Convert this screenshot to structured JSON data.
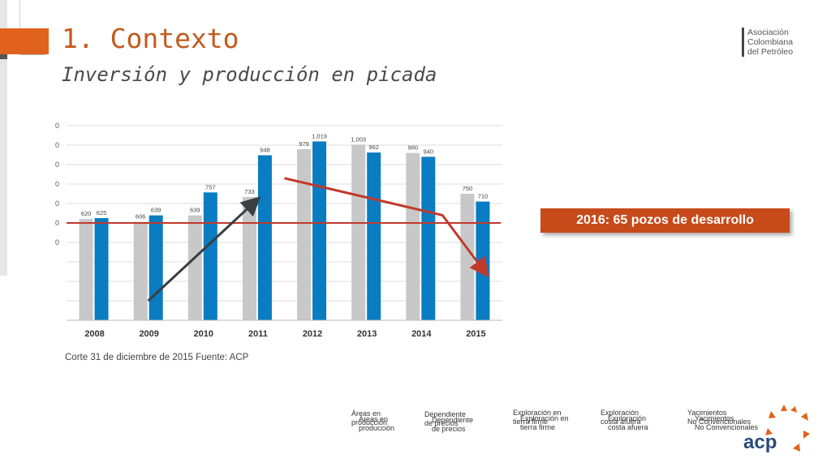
{
  "header": {
    "title": "1. Contexto",
    "subtitle": "Inversión y producción en picada"
  },
  "brand": {
    "top_logo_lines": [
      "Asociación",
      "Colombiana",
      "del Petróleo"
    ],
    "bottom_logo_text": "acp",
    "accent_color": "#e0621c"
  },
  "callout": {
    "text": "2016: 65 pozos de desarrollo"
  },
  "source_note": "Corte 31 de diciembre de 2015 Fuente: ACP",
  "legend": [
    {
      "line1": "Áreas en",
      "line2": "producción"
    },
    {
      "line1": "Dependiente",
      "line2": "de precios"
    },
    {
      "line1": "Exploración en",
      "line2": "tierra firme"
    },
    {
      "line1": "Exploración",
      "line2": "costa afuera"
    },
    {
      "line1": "Yacimientos",
      "line2": "No Convencionales"
    }
  ],
  "chart_data": {
    "type": "bar",
    "categories": [
      "2008",
      "2009",
      "2010",
      "2011",
      "2012",
      "2013",
      "2014",
      "2015"
    ],
    "series": [
      {
        "values": [
          620,
          606,
          639,
          733,
          979,
          1003,
          960,
          750
        ],
        "color": "#c8c8c8"
      },
      {
        "values": [
          625,
          639,
          757,
          948,
          1019,
          962,
          940,
          710
        ],
        "color": "#0a7cc1"
      }
    ],
    "data_labels": [
      [
        "620",
        "606",
        "639",
        "733",
        "979",
        "1,003",
        "960",
        "750"
      ],
      [
        "625",
        "639",
        "757",
        "948",
        "1,019",
        "962",
        "940",
        "710"
      ]
    ],
    "ylim": [
      100,
      1100
    ],
    "y_gridlines": [
      100,
      200,
      300,
      400,
      500,
      600,
      700,
      800,
      900,
      1000,
      1100
    ],
    "y_tick_labels": [
      "0",
      "0",
      "0",
      "0",
      "0",
      "0",
      "0"
    ],
    "reference_line": {
      "y": 600,
      "color": "#c0392b"
    },
    "trend_arrows": [
      {
        "points": [
          [
            2009,
            200
          ],
          [
            2011,
            720
          ]
        ],
        "color": "#3a3f44"
      },
      {
        "points": [
          [
            2011.5,
            830
          ],
          [
            2014.4,
            640
          ],
          [
            2015.2,
            340
          ]
        ],
        "color": "#c0392b"
      }
    ],
    "grid": true
  }
}
